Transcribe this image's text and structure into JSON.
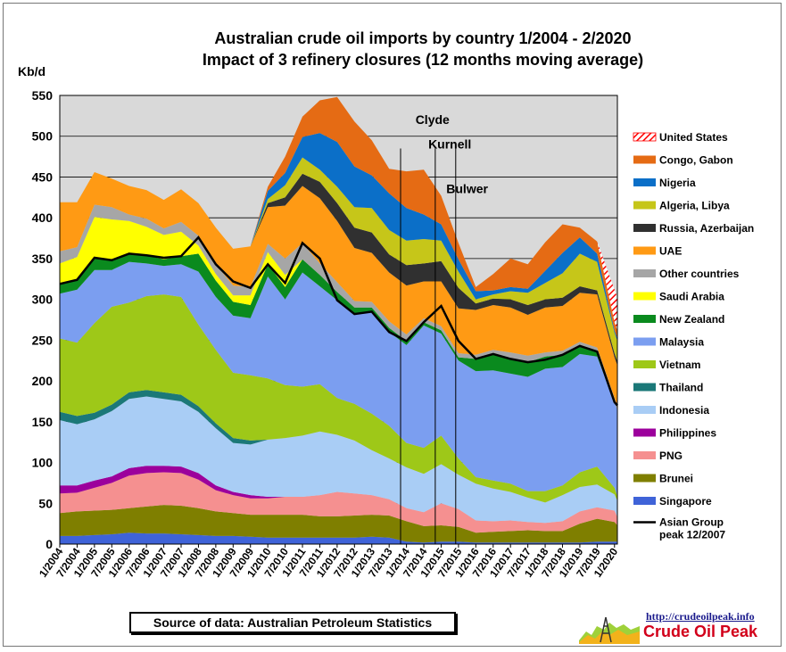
{
  "chart_data": {
    "type": "area",
    "title": "Australian crude oil imports  by country 1/2004 - 2/2020",
    "subtitle": "Impact of 3 refinery closures (12 months moving average)",
    "ylabel": "Kb/d",
    "ylim": [
      0,
      550
    ],
    "yticks": [
      "0",
      "50",
      "100",
      "150",
      "200",
      "250",
      "300",
      "350",
      "400",
      "450",
      "500",
      "550"
    ],
    "xlim": [
      2004.0,
      2020.083
    ],
    "x_tick_labels": [
      "1/2004",
      "7/2004",
      "1/2005",
      "7/2005",
      "1/2006",
      "7/2006",
      "1/2007",
      "7/2007",
      "1/2008",
      "7/2008",
      "1/2009",
      "7/2009",
      "1/2010",
      "7/2010",
      "1/2011",
      "7/2011",
      "1/2012",
      "7/2012",
      "1/2013",
      "7/2013",
      "1/2014",
      "7/2014",
      "1/2015",
      "7/2015",
      "1/2016",
      "7/2016",
      "1/2017",
      "7/2017",
      "1/2018",
      "7/2018",
      "1/2019",
      "7/2019",
      "1/2020"
    ],
    "grid": true,
    "legend_position": "right",
    "stacking_order": "bottom-to-top",
    "x": [
      2004.0,
      2004.5,
      2005.0,
      2005.5,
      2006.0,
      2006.5,
      2007.0,
      2007.5,
      2008.0,
      2008.5,
      2009.0,
      2009.5,
      2010.0,
      2010.5,
      2011.0,
      2011.5,
      2012.0,
      2012.5,
      2013.0,
      2013.5,
      2014.0,
      2014.5,
      2015.0,
      2015.5,
      2016.0,
      2016.5,
      2017.0,
      2017.5,
      2018.0,
      2018.5,
      2019.0,
      2019.5,
      2020.0,
      2020.083
    ],
    "series": [
      {
        "name": "Singapore",
        "color": "#3f63d8",
        "values": [
          10,
          10,
          11,
          12,
          14,
          13,
          13,
          12,
          11,
          10,
          10,
          9,
          8,
          8,
          8,
          8,
          8,
          8,
          9,
          8,
          3,
          2,
          3,
          3,
          2,
          2,
          2,
          2,
          2,
          2,
          2,
          3,
          3,
          3
        ]
      },
      {
        "name": "Brunei",
        "color": "#7f7f00",
        "values": [
          28,
          30,
          30,
          30,
          30,
          33,
          35,
          35,
          33,
          30,
          28,
          27,
          28,
          28,
          28,
          26,
          26,
          27,
          27,
          27,
          25,
          20,
          20,
          18,
          12,
          13,
          14,
          15,
          14,
          14,
          23,
          28,
          24,
          20
        ]
      },
      {
        "name": "PNG",
        "color": "#f59090",
        "values": [
          24,
          23,
          28,
          33,
          40,
          41,
          40,
          40,
          35,
          26,
          22,
          20,
          20,
          22,
          22,
          26,
          30,
          27,
          24,
          20,
          16,
          17,
          27,
          22,
          15,
          13,
          13,
          10,
          10,
          12,
          15,
          14,
          14,
          10
        ]
      },
      {
        "name": "Philippines",
        "color": "#9c009c",
        "values": [
          10,
          9,
          9,
          8,
          9,
          9,
          8,
          8,
          8,
          6,
          4,
          4,
          2,
          0,
          0,
          0,
          0,
          0,
          0,
          0,
          0,
          0,
          0,
          0,
          0,
          0,
          0,
          0,
          0,
          0,
          0,
          0,
          0,
          0
        ]
      },
      {
        "name": "Indonesia",
        "color": "#a9cdf5",
        "values": [
          80,
          75,
          75,
          80,
          85,
          85,
          82,
          80,
          75,
          70,
          60,
          62,
          70,
          72,
          75,
          78,
          70,
          65,
          55,
          50,
          50,
          47,
          48,
          42,
          45,
          40,
          35,
          30,
          25,
          32,
          30,
          28,
          20,
          20
        ]
      },
      {
        "name": "Thailand",
        "color": "#1b7878",
        "values": [
          10,
          10,
          8,
          8,
          8,
          8,
          8,
          8,
          7,
          6,
          6,
          5,
          0,
          0,
          0,
          0,
          0,
          0,
          0,
          0,
          0,
          0,
          0,
          0,
          0,
          0,
          0,
          0,
          0,
          0,
          0,
          0,
          0,
          0
        ]
      },
      {
        "name": "Vietnam",
        "color": "#9ec818",
        "values": [
          90,
          90,
          110,
          120,
          110,
          115,
          120,
          120,
          100,
          90,
          80,
          80,
          75,
          65,
          60,
          58,
          45,
          45,
          45,
          40,
          30,
          32,
          35,
          20,
          8,
          10,
          10,
          8,
          14,
          12,
          18,
          22,
          8,
          6
        ]
      },
      {
        "name": "Malaysia",
        "color": "#7b9ef0",
        "values": [
          55,
          65,
          65,
          45,
          50,
          40,
          35,
          40,
          65,
          65,
          70,
          70,
          125,
          105,
          140,
          120,
          120,
          110,
          125,
          115,
          120,
          150,
          125,
          120,
          130,
          135,
          135,
          140,
          150,
          145,
          145,
          135,
          105,
          105
        ]
      },
      {
        "name": "New Zealand",
        "color": "#0a8a1e",
        "values": [
          12,
          12,
          15,
          12,
          10,
          10,
          8,
          10,
          22,
          20,
          17,
          16,
          15,
          15,
          16,
          14,
          10,
          8,
          5,
          5,
          5,
          4,
          4,
          4,
          15,
          20,
          18,
          18,
          15,
          15,
          10,
          6,
          0,
          0
        ]
      },
      {
        "name": "Saudi Arabia",
        "color": "#ffff00",
        "values": [
          25,
          28,
          50,
          50,
          40,
          35,
          30,
          30,
          10,
          8,
          8,
          12,
          15,
          15,
          0,
          0,
          0,
          0,
          0,
          0,
          0,
          0,
          0,
          0,
          0,
          0,
          0,
          0,
          0,
          0,
          0,
          0,
          0,
          0
        ]
      },
      {
        "name": "Other countries",
        "color": "#a6a6a6",
        "values": [
          15,
          12,
          15,
          15,
          8,
          10,
          8,
          12,
          12,
          12,
          12,
          10,
          10,
          20,
          20,
          14,
          12,
          8,
          7,
          8,
          8,
          5,
          5,
          5,
          5,
          5,
          8,
          8,
          5,
          5,
          5,
          5,
          5,
          5
        ]
      },
      {
        "name": "UAE",
        "color": "#ff9a14",
        "values": [
          60,
          55,
          40,
          35,
          35,
          35,
          35,
          40,
          40,
          45,
          45,
          50,
          45,
          65,
          70,
          80,
          75,
          65,
          60,
          60,
          60,
          45,
          55,
          55,
          55,
          55,
          55,
          50,
          55,
          55,
          60,
          65,
          50,
          50
        ]
      },
      {
        "name": "Russia, Azerbaijan",
        "color": "#303030",
        "values": [
          0,
          0,
          0,
          0,
          0,
          0,
          0,
          0,
          0,
          0,
          0,
          0,
          5,
          10,
          15,
          20,
          22,
          25,
          25,
          22,
          25,
          22,
          25,
          25,
          8,
          8,
          10,
          12,
          10,
          10,
          8,
          5,
          5,
          5
        ]
      },
      {
        "name": "Algeria, Libya",
        "color": "#c6c619",
        "values": [
          0,
          0,
          0,
          0,
          0,
          0,
          0,
          0,
          0,
          0,
          0,
          0,
          5,
          15,
          20,
          15,
          20,
          25,
          30,
          30,
          30,
          30,
          25,
          20,
          5,
          5,
          10,
          15,
          20,
          30,
          40,
          35,
          25,
          25
        ]
      },
      {
        "name": "Nigeria",
        "color": "#0b6fc8",
        "values": [
          0,
          0,
          0,
          0,
          0,
          0,
          0,
          0,
          0,
          0,
          0,
          0,
          10,
          15,
          25,
          45,
          55,
          50,
          40,
          45,
          40,
          30,
          20,
          15,
          10,
          5,
          5,
          5,
          15,
          25,
          20,
          10,
          3,
          3
        ]
      },
      {
        "name": "Congo, Gabon",
        "color": "#e56b14",
        "values": [
          0,
          0,
          0,
          0,
          0,
          0,
          0,
          0,
          0,
          0,
          0,
          0,
          5,
          20,
          25,
          40,
          55,
          55,
          43,
          30,
          45,
          55,
          35,
          20,
          5,
          20,
          35,
          30,
          35,
          35,
          12,
          15,
          10,
          10
        ]
      },
      {
        "name": "United States",
        "color": "#ff0000",
        "values": [
          0,
          0,
          0,
          0,
          0,
          0,
          0,
          0,
          0,
          0,
          0,
          0,
          0,
          0,
          0,
          0,
          0,
          0,
          0,
          0,
          0,
          0,
          0,
          0,
          0,
          0,
          0,
          0,
          0,
          0,
          0,
          0,
          40,
          40
        ]
      }
    ],
    "asian_group_line": {
      "name": "Asian Group peak 12/2007",
      "color": "#000000",
      "values": [
        319,
        324,
        351,
        348,
        356,
        354,
        351,
        353,
        376,
        343,
        322,
        314,
        343,
        320,
        369,
        350,
        299,
        282,
        285,
        260,
        249,
        272,
        292,
        249,
        227,
        233,
        227,
        223,
        226,
        232,
        243,
        236,
        174,
        170
      ]
    },
    "annotations": [
      {
        "text": "Clyde",
        "x": 2014.75,
        "y": 515
      },
      {
        "text": "Kurnell",
        "x": 2015.25,
        "y": 485
      },
      {
        "text": "Bulwer",
        "x": 2015.75,
        "y": 430
      }
    ],
    "closure_lines": [
      2013.83,
      2014.83,
      2015.42
    ]
  },
  "legend": {
    "items": [
      {
        "label": "United States",
        "color": "#ff0000",
        "hatched": true
      },
      {
        "label": "Congo, Gabon",
        "color": "#e56b14"
      },
      {
        "label": "Nigeria",
        "color": "#0b6fc8"
      },
      {
        "label": "Algeria, Libya",
        "color": "#c6c619"
      },
      {
        "label": "Russia, Azerbaijan",
        "color": "#303030"
      },
      {
        "label": "UAE",
        "color": "#ff9a14"
      },
      {
        "label": "Other countries",
        "color": "#a6a6a6"
      },
      {
        "label": "Saudi Arabia",
        "color": "#ffff00"
      },
      {
        "label": "New Zealand",
        "color": "#0a8a1e"
      },
      {
        "label": "Malaysia",
        "color": "#7b9ef0"
      },
      {
        "label": "Vietnam",
        "color": "#9ec818"
      },
      {
        "label": "Thailand",
        "color": "#1b7878"
      },
      {
        "label": "Indonesia",
        "color": "#a9cdf5"
      },
      {
        "label": "Philippines",
        "color": "#9c009c"
      },
      {
        "label": "PNG",
        "color": "#f59090"
      },
      {
        "label": "Brunei",
        "color": "#7f7f00"
      },
      {
        "label": "Singapore",
        "color": "#3f63d8"
      }
    ],
    "line_item_label_1": "Asian Group",
    "line_item_label_2": "peak 12/2007"
  },
  "footer": {
    "source": "Source of data: Australian Petroleum Statistics",
    "logo_url": "http://crudeoilpeak.info",
    "logo_name": "Crude Oil Peak"
  }
}
